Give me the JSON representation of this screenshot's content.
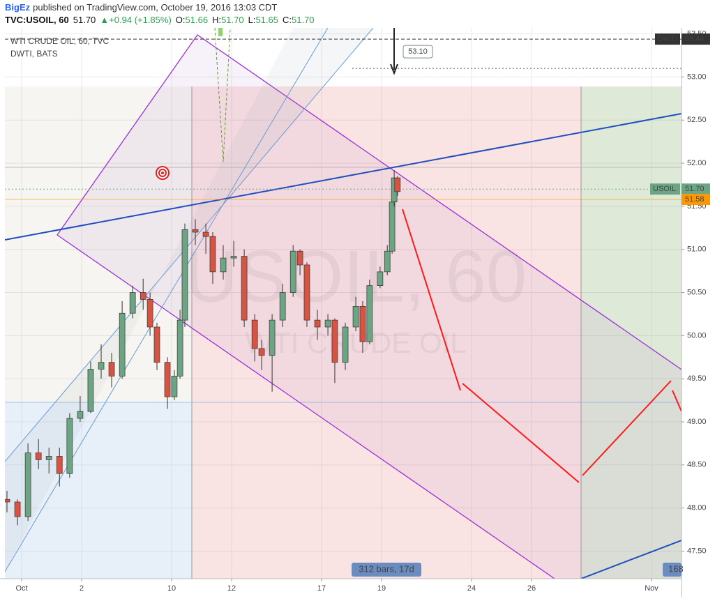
{
  "header": {
    "author": "BigEz",
    "published": "published on TradingView.com, October 19, 2016 13:03 CDT",
    "symbol": "TVC:USOIL, 60",
    "last": "51.70",
    "change": "▲+0.94 (+1.85%)",
    "ohlc": [
      {
        "k": "O:",
        "v": "51.66"
      },
      {
        "k": "H:",
        "v": "51.70"
      },
      {
        "k": "L:",
        "v": "51.65"
      },
      {
        "k": "C:",
        "v": "51.70"
      }
    ]
  },
  "chart_data": {
    "type": "candlestick",
    "legend": [
      "WTI CRUDE OIL, 60, TVC",
      "DWTI, BATS"
    ],
    "watermark": [
      "USOIL, 60",
      "WTI CRUDE OIL"
    ],
    "up_color": "#6ba583",
    "down_color": "#d75442",
    "x": [
      -0.49,
      -0.14,
      0.21,
      0.56,
      0.91,
      1.26,
      1.6,
      1.95,
      2.3,
      2.65,
      3.0,
      3.35,
      3.7,
      4.05,
      4.28,
      4.51,
      4.86,
      5.09,
      5.28,
      5.44,
      5.79,
      6.14,
      6.37,
      6.72,
      7.07,
      7.42,
      7.77,
      8.0,
      8.35,
      8.7,
      9.05,
      9.28,
      9.51,
      9.86,
      10.21,
      10.44,
      10.79,
      11.14,
      11.37,
      11.6,
      11.95,
      12.19,
      12.35,
      12.42,
      12.53
    ],
    "open": [
      48.1,
      48.07,
      47.9,
      48.64,
      48.56,
      48.6,
      48.4,
      49.04,
      49.12,
      49.61,
      49.69,
      49.53,
      50.26,
      50.5,
      50.42,
      50.1,
      49.69,
      49.29,
      49.53,
      50.18,
      51.23,
      51.2,
      51.15,
      50.74,
      50.9,
      50.92,
      50.18,
      49.85,
      49.77,
      50.18,
      50.5,
      50.98,
      50.82,
      50.18,
      50.1,
      50.18,
      49.69,
      50.1,
      50.34,
      49.93,
      50.58,
      50.74,
      50.98,
      51.55,
      51.83
    ],
    "high": [
      48.2,
      48.1,
      48.75,
      48.8,
      48.7,
      48.7,
      49.1,
      49.3,
      49.7,
      49.9,
      49.8,
      50.4,
      50.58,
      50.66,
      50.5,
      50.15,
      49.75,
      49.6,
      50.3,
      51.3,
      51.35,
      51.3,
      51.2,
      51.05,
      51.1,
      51.0,
      50.25,
      49.95,
      50.25,
      50.6,
      51.05,
      51.0,
      50.85,
      50.3,
      50.25,
      50.2,
      50.15,
      50.45,
      50.4,
      50.65,
      50.8,
      51.05,
      51.6,
      51.92,
      51.85
    ],
    "low": [
      47.95,
      47.8,
      47.85,
      48.45,
      48.4,
      48.25,
      48.35,
      49.0,
      49.1,
      49.5,
      49.4,
      49.5,
      50.2,
      50.3,
      50.0,
      49.6,
      49.15,
      49.25,
      49.5,
      50.1,
      51.05,
      50.95,
      50.6,
      50.65,
      50.8,
      50.1,
      49.7,
      49.6,
      49.35,
      50.1,
      50.45,
      50.7,
      50.1,
      49.95,
      50.0,
      49.45,
      49.6,
      50.05,
      49.8,
      49.9,
      50.55,
      50.7,
      50.95,
      51.5,
      51.62
    ],
    "close": [
      48.07,
      47.9,
      48.64,
      48.56,
      48.6,
      48.4,
      49.04,
      49.12,
      49.61,
      49.69,
      49.53,
      50.26,
      50.5,
      50.42,
      50.1,
      49.69,
      49.29,
      49.53,
      50.18,
      51.23,
      51.2,
      51.15,
      50.74,
      50.9,
      50.92,
      50.18,
      49.85,
      49.77,
      50.18,
      50.5,
      50.98,
      50.82,
      50.18,
      50.1,
      50.18,
      49.69,
      50.1,
      50.34,
      49.93,
      50.58,
      50.74,
      50.98,
      51.55,
      51.83,
      51.67
    ],
    "xlim": [
      -0.56,
      22
    ],
    "xticks": [
      {
        "value": 0,
        "label": "Oct"
      },
      2,
      {
        "value": 5,
        "label": "10"
      },
      {
        "value": 7,
        "label": "12"
      },
      {
        "value": 10,
        "label": "17"
      },
      {
        "value": 12,
        "label": "19"
      },
      {
        "value": 15,
        "label": "24"
      },
      {
        "value": 17,
        "label": "26"
      },
      {
        "value": 21,
        "label": "Nov"
      }
    ],
    "ylim": [
      47.18,
      53.57
    ],
    "yticks": [
      47.5,
      {
        "value": 48,
        "label": "48.00"
      },
      48.5,
      {
        "value": 49,
        "label": "49.00"
      },
      49.5,
      {
        "value": 50,
        "label": "50.00"
      },
      50.5,
      {
        "value": 51,
        "label": "51.00"
      },
      51.5,
      {
        "value": 52,
        "label": "52.00"
      },
      52.5,
      {
        "value": 53,
        "label": "53.00"
      },
      53.5
    ],
    "ytick_labels": [
      "47.50",
      "48.50",
      "49.50",
      "50.50",
      "51.50",
      "52.50",
      "53.50"
    ],
    "grid": true,
    "price_labels": [
      {
        "name": "DWTI",
        "value": 53.44,
        "label": "53.44",
        "color": "#333333"
      },
      {
        "name": "USOIL",
        "value": 51.7,
        "label": "51.70",
        "color": "#6ba583"
      },
      {
        "value": 51.58,
        "label": "51.58",
        "color": "#ff9800"
      }
    ],
    "callout": {
      "value": 53.1,
      "label": "53.10"
    },
    "range_label": "312 bars, 17d",
    "cut_label": "168"
  }
}
